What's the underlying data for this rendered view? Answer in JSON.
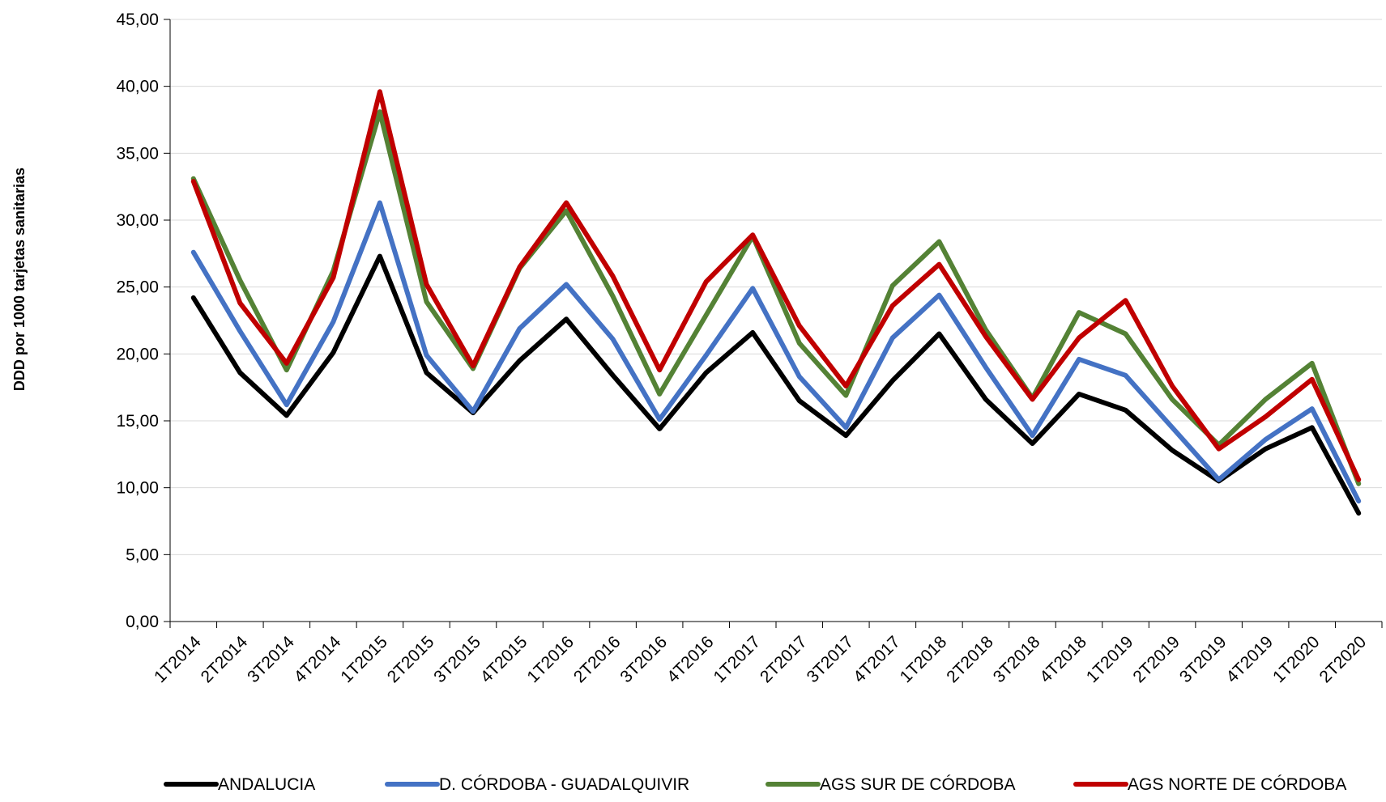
{
  "chart_data": {
    "type": "line",
    "title": "",
    "xlabel": "",
    "ylabel": "DDD por 1000 tarjetas sanitarias",
    "ylim": [
      0,
      45
    ],
    "ytick_step": 5,
    "grid": true,
    "legend_position": "bottom",
    "categories": [
      "1T2014",
      "2T2014",
      "3T2014",
      "4T2014",
      "1T2015",
      "2T2015",
      "3T2015",
      "4T2015",
      "1T2016",
      "2T2016",
      "3T2016",
      "4T2016",
      "1T2017",
      "2T2017",
      "3T2017",
      "4T2017",
      "1T2018",
      "2T2018",
      "3T2018",
      "4T2018",
      "1T2019",
      "2T2019",
      "3T2019",
      "4T2019",
      "1T2020",
      "2T2020"
    ],
    "yticks": [
      "0,00",
      "5,00",
      "10,00",
      "15,00",
      "20,00",
      "25,00",
      "30,00",
      "35,00",
      "40,00",
      "45,00"
    ],
    "series": [
      {
        "name": "ANDALUCIA",
        "color": "#000000",
        "values": [
          24.2,
          18.6,
          15.4,
          20.1,
          27.3,
          18.6,
          15.6,
          19.5,
          22.6,
          18.4,
          14.4,
          18.6,
          21.6,
          16.5,
          13.9,
          18.0,
          21.5,
          16.6,
          13.3,
          17.0,
          15.8,
          12.8,
          10.5,
          12.9,
          14.5,
          8.1
        ]
      },
      {
        "name": "D. CÓRDOBA - GUADALQUIVIR",
        "color": "#4472C4",
        "values": [
          27.6,
          21.7,
          16.2,
          22.4,
          31.3,
          19.9,
          15.7,
          21.9,
          25.2,
          21.1,
          15.1,
          19.9,
          24.9,
          18.3,
          14.5,
          21.2,
          24.4,
          19.0,
          13.9,
          19.6,
          18.4,
          14.5,
          10.6,
          13.6,
          15.9,
          9.0
        ]
      },
      {
        "name": "AGS SUR DE CÓRDOBA",
        "color": "#548235",
        "values": [
          33.1,
          25.5,
          18.8,
          26.2,
          38.1,
          23.9,
          18.9,
          26.4,
          30.7,
          24.3,
          17.0,
          22.9,
          28.8,
          20.8,
          16.9,
          25.1,
          28.4,
          21.8,
          16.7,
          23.1,
          21.5,
          16.6,
          13.2,
          16.6,
          19.3,
          10.3
        ]
      },
      {
        "name": "AGS NORTE DE CÓRDOBA",
        "color": "#C00000",
        "values": [
          32.9,
          23.8,
          19.3,
          25.7,
          39.6,
          25.2,
          19.1,
          26.5,
          31.3,
          25.8,
          18.8,
          25.4,
          28.9,
          22.1,
          17.6,
          23.6,
          26.7,
          21.3,
          16.6,
          21.2,
          24.0,
          17.6,
          12.9,
          15.3,
          18.1,
          10.6
        ]
      }
    ]
  }
}
